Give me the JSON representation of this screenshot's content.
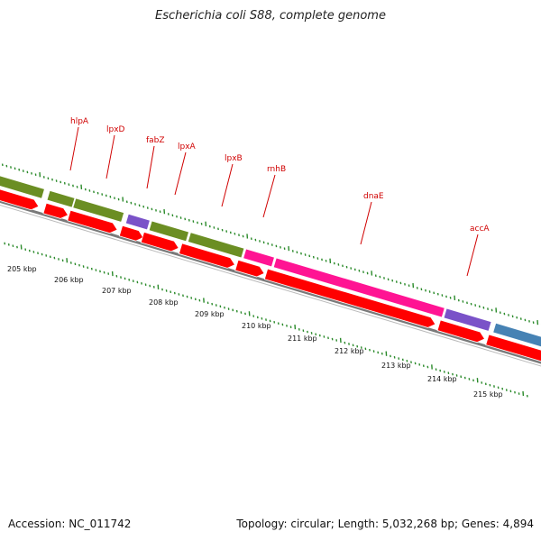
{
  "title": "Escherichia coli S88, complete genome",
  "footer": {
    "accession": "Accession: NC_011742",
    "summary": "Topology: circular; Length: 5,032,268 bp; Genes: 4,894"
  },
  "colors": {
    "background": "#ffffff",
    "backbone": "#7a7a7a",
    "cds_forward": "#ff0000",
    "tick": "#2a8a2a",
    "label": "#d00000",
    "gene_olive": "#6b8e23",
    "gene_purple": "#7a52c8",
    "gene_magenta": "#ff1493",
    "gene_steelblue": "#4682b4"
  },
  "map": {
    "kbp_labels": [
      "205 kbp",
      "206 kbp",
      "207 kbp",
      "208 kbp",
      "209 kbp",
      "210 kbp",
      "211 kbp",
      "212 kbp",
      "213 kbp",
      "214 kbp",
      "215 kbp"
    ],
    "gene_labels": [
      {
        "name": "hlpA"
      },
      {
        "name": "lpxD"
      },
      {
        "name": "fabZ"
      },
      {
        "name": "lpxA"
      },
      {
        "name": "lpxB"
      },
      {
        "name": "rnhB"
      },
      {
        "name": "dnaE"
      },
      {
        "name": "accA"
      }
    ]
  }
}
